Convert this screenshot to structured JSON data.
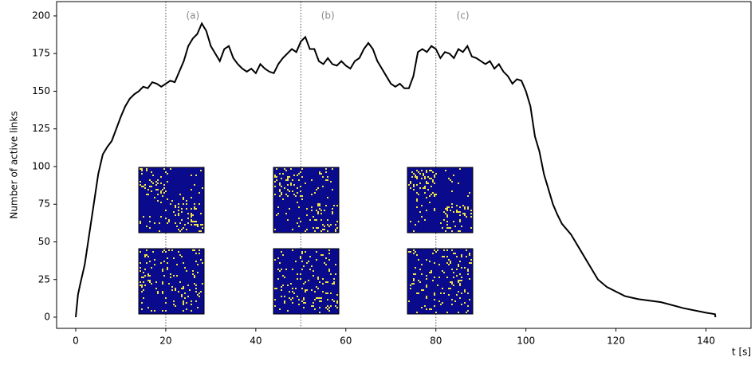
{
  "chart_data": {
    "type": "line",
    "xlabel": "t [s]",
    "ylabel": "Number of active links",
    "xlim": [
      -4.25,
      150
    ],
    "ylim": [
      -7.4,
      209.5
    ],
    "xticks": [
      0,
      20,
      40,
      60,
      80,
      100,
      120,
      140
    ],
    "yticks": [
      0,
      25,
      50,
      75,
      100,
      125,
      150,
      175,
      200
    ],
    "vlines": [
      20,
      50,
      80
    ],
    "annotations": [
      {
        "text": "(a)",
        "x": 26,
        "y": 200
      },
      {
        "text": "(b)",
        "x": 56,
        "y": 200
      },
      {
        "text": "(c)",
        "x": 86,
        "y": 200
      }
    ],
    "series": [
      {
        "name": "active links",
        "color": "#000000",
        "x": [
          0,
          0.5,
          1,
          2,
          3,
          4,
          5,
          6,
          7,
          8,
          9,
          10,
          11,
          12,
          13,
          14,
          15,
          16,
          17,
          18,
          19,
          20,
          21,
          22,
          23,
          24,
          25,
          26,
          27,
          28,
          29,
          30,
          31,
          32,
          33,
          34,
          35,
          36,
          37,
          38,
          39,
          40,
          41,
          42,
          43,
          44,
          45,
          46,
          47,
          48,
          49,
          50,
          51,
          52,
          53,
          54,
          55,
          56,
          57,
          58,
          59,
          60,
          61,
          62,
          63,
          64,
          65,
          66,
          67,
          68,
          69,
          70,
          71,
          72,
          73,
          74,
          75,
          76,
          77,
          78,
          79,
          80,
          81,
          82,
          83,
          84,
          85,
          86,
          87,
          88,
          89,
          90,
          91,
          92,
          93,
          94,
          95,
          96,
          97,
          98,
          99,
          100,
          101,
          102,
          103,
          104,
          105,
          106,
          107,
          108,
          110,
          112,
          114,
          116,
          118,
          120,
          122,
          125,
          130,
          135,
          140,
          142,
          142.1
        ],
        "values": [
          0,
          15,
          22,
          35,
          55,
          75,
          95,
          108,
          113,
          117,
          125,
          133,
          140,
          145,
          148,
          150,
          153,
          152,
          156,
          155,
          153,
          155,
          157,
          156,
          163,
          170,
          180,
          185,
          188,
          195,
          190,
          180,
          175,
          170,
          178,
          180,
          172,
          168,
          165,
          163,
          165,
          162,
          168,
          165,
          163,
          162,
          168,
          172,
          175,
          178,
          176,
          183,
          186,
          178,
          178,
          170,
          168,
          172,
          168,
          167,
          170,
          167,
          165,
          170,
          172,
          178,
          182,
          178,
          170,
          165,
          160,
          155,
          153,
          155,
          152,
          152,
          160,
          176,
          178,
          176,
          180,
          178,
          172,
          176,
          175,
          172,
          178,
          176,
          180,
          173,
          172,
          170,
          168,
          170,
          165,
          168,
          163,
          160,
          155,
          158,
          157,
          150,
          140,
          120,
          110,
          95,
          85,
          75,
          68,
          62,
          55,
          45,
          35,
          25,
          20,
          17,
          14,
          12,
          10,
          6,
          3,
          2,
          0
        ]
      }
    ]
  }
}
